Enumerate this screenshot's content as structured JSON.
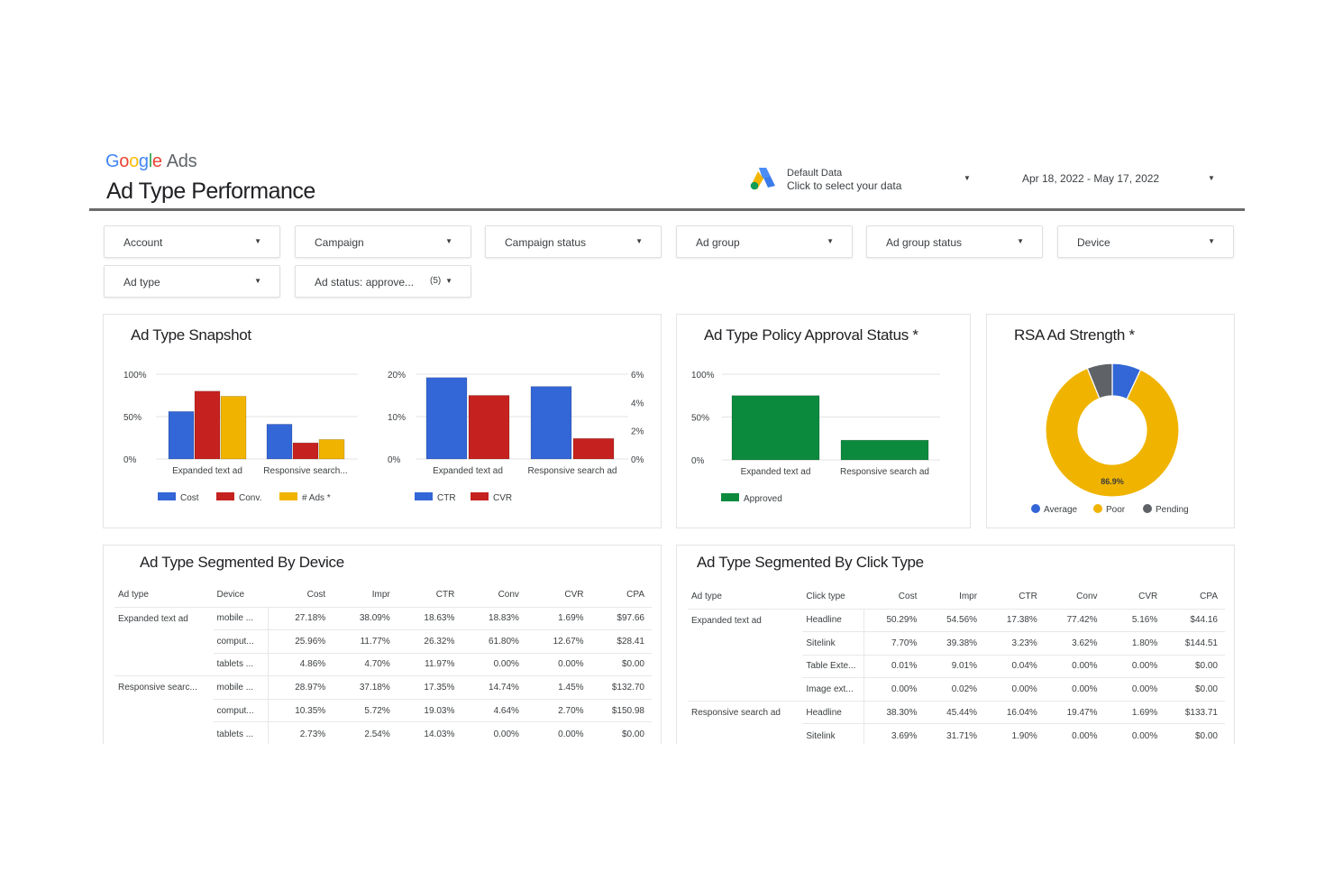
{
  "header": {
    "logo_google": "Google",
    "logo_ads": "Ads",
    "title": "Ad Type Performance",
    "data_source_line1": "Default Data",
    "data_source_line2": "Click to select your data",
    "date_range": "Apr 18, 2022 - May 17, 2022"
  },
  "filters": [
    {
      "label": "Account"
    },
    {
      "label": "Campaign"
    },
    {
      "label": "Campaign status"
    },
    {
      "label": "Ad group"
    },
    {
      "label": "Ad group status"
    },
    {
      "label": "Device"
    },
    {
      "label": "Ad type"
    },
    {
      "label": "Ad status: approve...",
      "count": "(5)"
    }
  ],
  "colors": {
    "blue": "#3366d6",
    "red": "#c5221f",
    "yellow": "#f0b400",
    "green": "#0b8a3e",
    "gray": "#5f6368"
  },
  "snapshot": {
    "title": "Ad Type Snapshot",
    "legend1": [
      "Cost",
      "Conv.",
      "# Ads *"
    ],
    "legend2": [
      "CTR",
      "CVR"
    ]
  },
  "policy": {
    "title": "Ad Type Policy Approval Status *",
    "legend": [
      "Approved"
    ]
  },
  "rsa": {
    "title": "RSA Ad Strength *",
    "legend": [
      "Average",
      "Poor",
      "Pending"
    ],
    "center_label": "86.9%"
  },
  "chart_data": [
    {
      "type": "bar",
      "title": "Ad Type Snapshot",
      "categories": [
        "Expanded text ad",
        "Responsive search..."
      ],
      "series": [
        {
          "name": "Cost",
          "values": [
            56,
            41
          ]
        },
        {
          "name": "Conv.",
          "values": [
            80,
            19
          ]
        },
        {
          "name": "# Ads *",
          "values": [
            74,
            23
          ]
        }
      ],
      "ylim": [
        0,
        100
      ],
      "yticks": [
        "100%",
        "50%",
        "0%"
      ],
      "legend": "bottom"
    },
    {
      "type": "bar",
      "categories": [
        "Expanded text ad",
        "Responsive search ad"
      ],
      "series": [
        {
          "name": "CTR",
          "values": [
            19.2,
            17.1
          ],
          "axis": "left"
        },
        {
          "name": "CVR",
          "values": [
            4.5,
            1.45
          ],
          "axis": "right"
        }
      ],
      "ylim_left": [
        0,
        20
      ],
      "ylim_right": [
        0,
        6
      ],
      "yticks_left": [
        "20%",
        "10%",
        "0%"
      ],
      "yticks_right": [
        "6%",
        "4%",
        "2%",
        "0%"
      ],
      "legend": "bottom"
    },
    {
      "type": "bar",
      "title": "Ad Type Policy Approval Status *",
      "categories": [
        "Expanded text ad",
        "Responsive search ad"
      ],
      "series": [
        {
          "name": "Approved",
          "values": [
            75,
            23
          ]
        }
      ],
      "ylim": [
        0,
        100
      ],
      "yticks": [
        "100%",
        "50%",
        "0%"
      ],
      "legend": "bottom"
    },
    {
      "type": "pie",
      "title": "RSA Ad Strength *",
      "donut": true,
      "slices": [
        {
          "name": "Average",
          "value": 7.0
        },
        {
          "name": "Poor",
          "value": 86.9
        },
        {
          "name": "Pending",
          "value": 6.1
        }
      ],
      "legend": "bottom"
    }
  ],
  "device_table": {
    "title": "Ad Type Segmented By Device",
    "headers": [
      "Ad type",
      "Device",
      "Cost",
      "Impr",
      "CTR",
      "Conv",
      "CVR",
      "CPA"
    ],
    "rows": [
      [
        "Expanded text ad",
        "mobile ...",
        "27.18%",
        "38.09%",
        "18.63%",
        "18.83%",
        "1.69%",
        "$97.66"
      ],
      [
        "",
        "comput...",
        "25.96%",
        "11.77%",
        "26.32%",
        "61.80%",
        "12.67%",
        "$28.41"
      ],
      [
        "",
        "tablets ...",
        "4.86%",
        "4.70%",
        "11.97%",
        "0.00%",
        "0.00%",
        "$0.00"
      ],
      [
        "Responsive searc...",
        "mobile ...",
        "28.97%",
        "37.18%",
        "17.35%",
        "14.74%",
        "1.45%",
        "$132.70"
      ],
      [
        "",
        "comput...",
        "10.35%",
        "5.72%",
        "19.03%",
        "4.64%",
        "2.70%",
        "$150.98"
      ],
      [
        "",
        "tablets ...",
        "2.73%",
        "2.54%",
        "14.03%",
        "0.00%",
        "0.00%",
        "$0.00"
      ]
    ]
  },
  "click_table": {
    "title": "Ad Type Segmented By Click Type",
    "headers": [
      "Ad type",
      "Click type",
      "Cost",
      "Impr",
      "CTR",
      "Conv",
      "CVR",
      "CPA"
    ],
    "rows": [
      [
        "Expanded text ad",
        "Headline",
        "50.29%",
        "54.56%",
        "17.38%",
        "77.42%",
        "5.16%",
        "$44.16"
      ],
      [
        "",
        "Sitelink",
        "7.70%",
        "39.38%",
        "3.23%",
        "3.62%",
        "1.80%",
        "$144.51"
      ],
      [
        "",
        "Table Exte...",
        "0.01%",
        "9.01%",
        "0.04%",
        "0.00%",
        "0.00%",
        "$0.00"
      ],
      [
        "",
        "Image ext...",
        "0.00%",
        "0.02%",
        "0.00%",
        "0.00%",
        "0.00%",
        "$0.00"
      ],
      [
        "Responsive search ad",
        "Headline",
        "38.30%",
        "45.44%",
        "16.04%",
        "19.47%",
        "1.69%",
        "$133.71"
      ],
      [
        "",
        "Sitelink",
        "3.69%",
        "31.71%",
        "1.90%",
        "0.00%",
        "0.00%",
        "$0.00"
      ]
    ]
  }
}
